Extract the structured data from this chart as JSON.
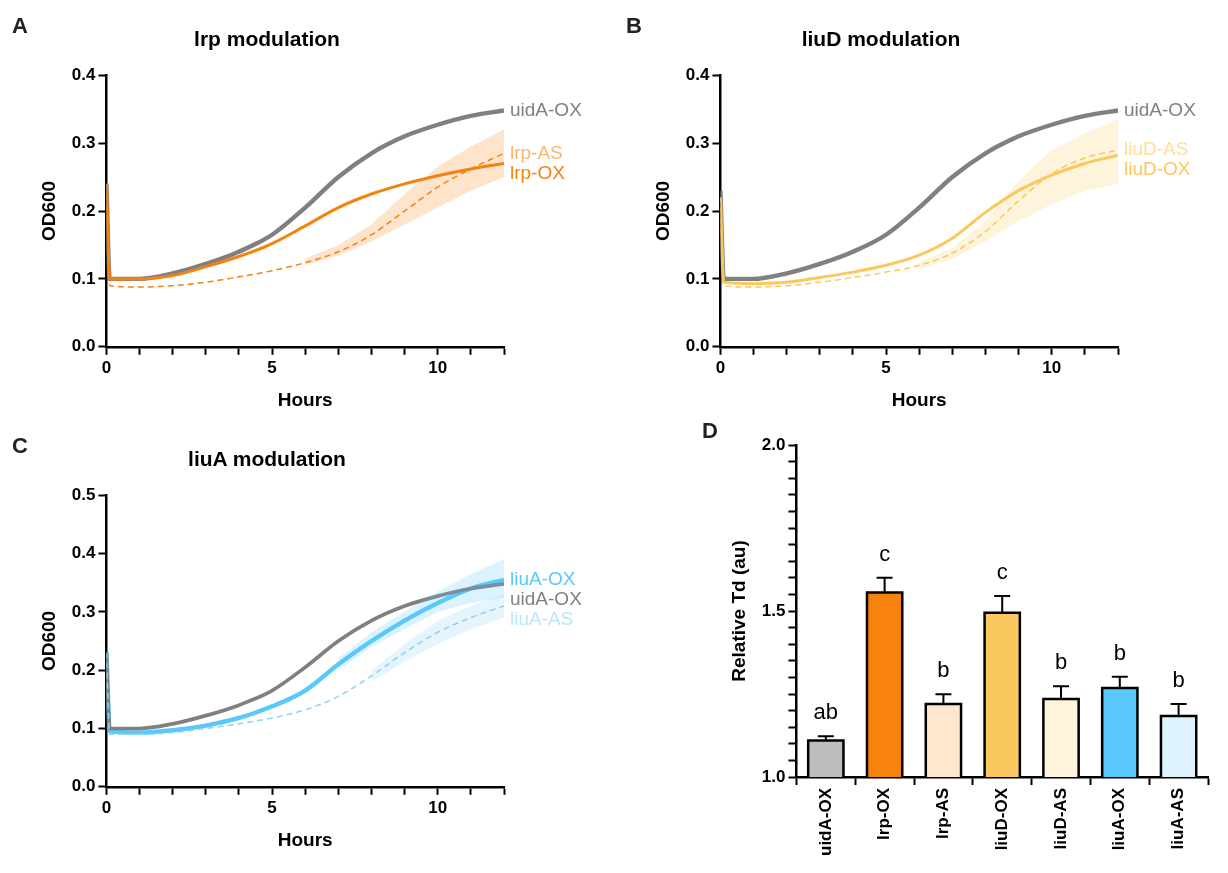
{
  "chart_data": [
    {
      "type": "line",
      "title": "lrp modulation",
      "xlabel": "Hours",
      "ylabel": "OD600",
      "annotations": [
        "A"
      ],
      "marker": "none",
      "xlim": [
        0,
        12
      ],
      "ylim": [
        0,
        0.4
      ],
      "xticks": [
        0,
        {
          "value": 1,
          "label": null
        },
        {
          "value": 2,
          "label": null
        },
        {
          "value": 3,
          "label": null
        },
        {
          "value": 4,
          "label": null
        },
        5,
        {
          "value": 6,
          "label": null
        },
        {
          "value": 7,
          "label": null
        },
        {
          "value": 8,
          "label": null
        },
        {
          "value": 9,
          "label": null
        },
        10,
        {
          "value": 11,
          "label": null
        },
        {
          "value": 12,
          "label": null
        }
      ],
      "yticks": [
        {
          "value": 0,
          "label": "0.0"
        },
        0.1,
        0.2,
        0.3,
        0.4
      ],
      "x": [
        0,
        0.1,
        1,
        2,
        3,
        4,
        5,
        6,
        7,
        8,
        9,
        10,
        11,
        12
      ],
      "series": [
        {
          "name": "uidA-OX",
          "color": "#808080",
          "values": [
            0.24,
            0.1,
            0.1,
            0.108,
            0.122,
            0.14,
            0.165,
            0.205,
            0.25,
            0.285,
            0.31,
            0.327,
            0.34,
            0.348
          ]
        },
        {
          "name": "lrp-AS",
          "color": "#f5820f",
          "line_style": "dashed",
          "values": [
            0.24,
            0.09,
            0.088,
            0.09,
            0.095,
            0.103,
            0.112,
            0.124,
            0.14,
            0.165,
            0.2,
            0.235,
            0.262,
            0.285
          ],
          "lower": [
            null,
            null,
            null,
            null,
            null,
            null,
            null,
            0.12,
            0.135,
            0.155,
            0.18,
            0.205,
            0.23,
            0.25
          ],
          "upper": [
            null,
            null,
            null,
            null,
            null,
            null,
            null,
            0.13,
            0.15,
            0.18,
            0.225,
            0.265,
            0.295,
            0.32
          ]
        },
        {
          "name": "lrp-OX",
          "color": "#f5820f",
          "values": [
            0.24,
            0.1,
            0.1,
            0.105,
            0.118,
            0.133,
            0.152,
            0.178,
            0.205,
            0.225,
            0.24,
            0.252,
            0.262,
            0.27
          ]
        }
      ]
    },
    {
      "type": "line",
      "title": "liuD modulation",
      "xlabel": "Hours",
      "ylabel": "OD600",
      "annotations": [
        "B"
      ],
      "marker": "none",
      "xlim": [
        0,
        12
      ],
      "ylim": [
        0,
        0.4
      ],
      "xticks": [
        0,
        {
          "value": 1,
          "label": null
        },
        {
          "value": 2,
          "label": null
        },
        {
          "value": 3,
          "label": null
        },
        {
          "value": 4,
          "label": null
        },
        5,
        {
          "value": 6,
          "label": null
        },
        {
          "value": 7,
          "label": null
        },
        {
          "value": 8,
          "label": null
        },
        {
          "value": 9,
          "label": null
        },
        10,
        {
          "value": 11,
          "label": null
        },
        {
          "value": 12,
          "label": null
        }
      ],
      "yticks": [
        {
          "value": 0,
          "label": "0.0"
        },
        0.1,
        0.2,
        0.3,
        0.4
      ],
      "x": [
        0,
        0.1,
        1,
        2,
        3,
        4,
        5,
        6,
        7,
        8,
        9,
        10,
        11,
        12
      ],
      "series": [
        {
          "name": "uidA-OX",
          "color": "#808080",
          "values": [
            0.23,
            0.1,
            0.1,
            0.108,
            0.122,
            0.14,
            0.165,
            0.205,
            0.25,
            0.285,
            0.31,
            0.327,
            0.34,
            0.348
          ]
        },
        {
          "name": "liuD-AS",
          "color": "#fbc85c",
          "line_style": "dashed",
          "values": [
            0.22,
            0.09,
            0.088,
            0.09,
            0.095,
            0.102,
            0.11,
            0.12,
            0.138,
            0.17,
            0.215,
            0.255,
            0.278,
            0.29
          ],
          "lower": [
            null,
            null,
            null,
            null,
            null,
            null,
            null,
            0.115,
            0.13,
            0.155,
            0.185,
            0.21,
            0.23,
            0.24
          ],
          "upper": [
            null,
            null,
            null,
            null,
            null,
            null,
            null,
            0.125,
            0.145,
            0.185,
            0.245,
            0.29,
            0.315,
            0.335
          ]
        },
        {
          "name": "liuD-OX",
          "color": "#fbc85c",
          "values": [
            0.22,
            0.095,
            0.093,
            0.095,
            0.102,
            0.11,
            0.12,
            0.135,
            0.16,
            0.198,
            0.23,
            0.253,
            0.27,
            0.282
          ]
        }
      ]
    },
    {
      "type": "line",
      "title": "liuA modulation",
      "xlabel": "Hours",
      "ylabel": "OD600",
      "annotations": [
        "C"
      ],
      "marker": "none",
      "xlim": [
        0,
        12
      ],
      "ylim": [
        0,
        0.5
      ],
      "xticks": [
        0,
        {
          "value": 1,
          "label": null
        },
        {
          "value": 2,
          "label": null
        },
        {
          "value": 3,
          "label": null
        },
        {
          "value": 4,
          "label": null
        },
        5,
        {
          "value": 6,
          "label": null
        },
        {
          "value": 7,
          "label": null
        },
        {
          "value": 8,
          "label": null
        },
        {
          "value": 9,
          "label": null
        },
        10,
        {
          "value": 11,
          "label": null
        },
        {
          "value": 12,
          "label": null
        }
      ],
      "yticks": [
        {
          "value": 0,
          "label": "0.0"
        },
        0.1,
        0.2,
        0.3,
        0.4,
        0.5
      ],
      "x": [
        0,
        0.1,
        1,
        2,
        3,
        4,
        5,
        6,
        7,
        8,
        9,
        10,
        11,
        12
      ],
      "series": [
        {
          "name": "liuA-OX",
          "color": "#5ac8fa",
          "values": [
            0.23,
            0.095,
            0.093,
            0.097,
            0.105,
            0.118,
            0.138,
            0.165,
            0.21,
            0.25,
            0.285,
            0.315,
            0.34,
            0.355
          ],
          "lower": [
            null,
            null,
            null,
            null,
            null,
            null,
            null,
            null,
            0.2,
            0.24,
            0.27,
            0.3,
            0.315,
            0.325
          ],
          "upper": [
            null,
            null,
            null,
            null,
            null,
            null,
            null,
            null,
            0.22,
            0.265,
            0.3,
            0.335,
            0.365,
            0.39
          ]
        },
        {
          "name": "uidA-OX",
          "color": "#808080",
          "values": [
            0.23,
            0.1,
            0.1,
            0.108,
            0.122,
            0.14,
            0.165,
            0.205,
            0.25,
            0.285,
            0.31,
            0.327,
            0.34,
            0.348
          ]
        },
        {
          "name": "liuA-AS",
          "color": "#8fd3f7",
          "line_style": "dashed",
          "values": [
            0.23,
            0.09,
            0.09,
            0.093,
            0.1,
            0.108,
            0.118,
            0.132,
            0.155,
            0.19,
            0.23,
            0.265,
            0.29,
            0.31
          ],
          "lower": [
            null,
            null,
            null,
            null,
            null,
            null,
            null,
            null,
            null,
            0.18,
            0.215,
            0.245,
            0.27,
            0.29
          ],
          "upper": [
            null,
            null,
            null,
            null,
            null,
            null,
            null,
            null,
            null,
            0.2,
            0.245,
            0.285,
            0.31,
            0.33
          ]
        }
      ]
    },
    {
      "type": "bar",
      "ylabel": "Relative Td (au)",
      "ylim": [
        1,
        2
      ],
      "yticks": [
        {
          "value": 1,
          "label": "1.0"
        },
        {
          "value": 1.05,
          "label": null
        },
        {
          "value": 1.1,
          "label": null
        },
        {
          "value": 1.15,
          "label": null
        },
        {
          "value": 1.2,
          "label": null
        },
        {
          "value": 1.25,
          "label": null
        },
        {
          "value": 1.3,
          "label": null
        },
        {
          "value": 1.35,
          "label": null
        },
        {
          "value": 1.4,
          "label": null
        },
        {
          "value": 1.45,
          "label": null
        },
        {
          "value": 1.5,
          "label": "1.5"
        },
        {
          "value": 1.55,
          "label": null
        },
        {
          "value": 1.6,
          "label": null
        },
        {
          "value": 1.65,
          "label": null
        },
        {
          "value": 1.7,
          "label": null
        },
        {
          "value": 1.75,
          "label": null
        },
        {
          "value": 1.8,
          "label": null
        },
        {
          "value": 1.85,
          "label": null
        },
        {
          "value": 1.9,
          "label": null
        },
        {
          "value": 1.95,
          "label": null
        },
        {
          "value": 2,
          "label": "2.0"
        }
      ],
      "categories": [
        "uidA-OX",
        "lrp-OX",
        "lrp-AS",
        "liuD-OX",
        "liuD-AS",
        "liuA-OX",
        "liuA-AS"
      ],
      "values": [
        1.11,
        1.556,
        1.22,
        1.495,
        1.235,
        1.268,
        1.184
      ],
      "colors": [
        "#bdbdbd",
        "#f8820e",
        "#fee6cf",
        "#fbc85f",
        "#fff3dc",
        "#5ac8fa",
        "#def3fd"
      ],
      "errors": [
        [
          1.11,
          1.123
        ],
        [
          1.556,
          1.6
        ],
        [
          1.22,
          1.249
        ],
        [
          1.495,
          1.545
        ],
        [
          1.235,
          1.273
        ],
        [
          1.268,
          1.302
        ],
        [
          1.184,
          1.22
        ]
      ],
      "value_labels": [
        "ab",
        "c",
        "b",
        "c",
        "b",
        "b",
        "b"
      ],
      "annotations": [
        "D"
      ]
    }
  ]
}
